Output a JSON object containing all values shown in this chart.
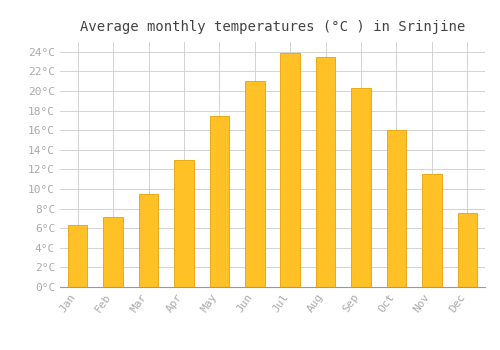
{
  "title": "Average monthly temperatures (°C ) in Srinjine",
  "months": [
    "Jan",
    "Feb",
    "Mar",
    "Apr",
    "May",
    "Jun",
    "Jul",
    "Aug",
    "Sep",
    "Oct",
    "Nov",
    "Dec"
  ],
  "temperatures": [
    6.3,
    7.1,
    9.5,
    13.0,
    17.5,
    21.0,
    23.9,
    23.5,
    20.3,
    16.0,
    11.5,
    7.6
  ],
  "bar_color": "#FFC125",
  "bar_edge_color": "#E8A000",
  "background_color": "#FFFFFF",
  "grid_color": "#CCCCCC",
  "ylim": [
    0,
    25
  ],
  "yticks": [
    0,
    2,
    4,
    6,
    8,
    10,
    12,
    14,
    16,
    18,
    20,
    22,
    24
  ],
  "title_fontsize": 10,
  "tick_fontsize": 8,
  "tick_font_color": "#AAAAAA",
  "font_family": "monospace",
  "bar_width": 0.55
}
